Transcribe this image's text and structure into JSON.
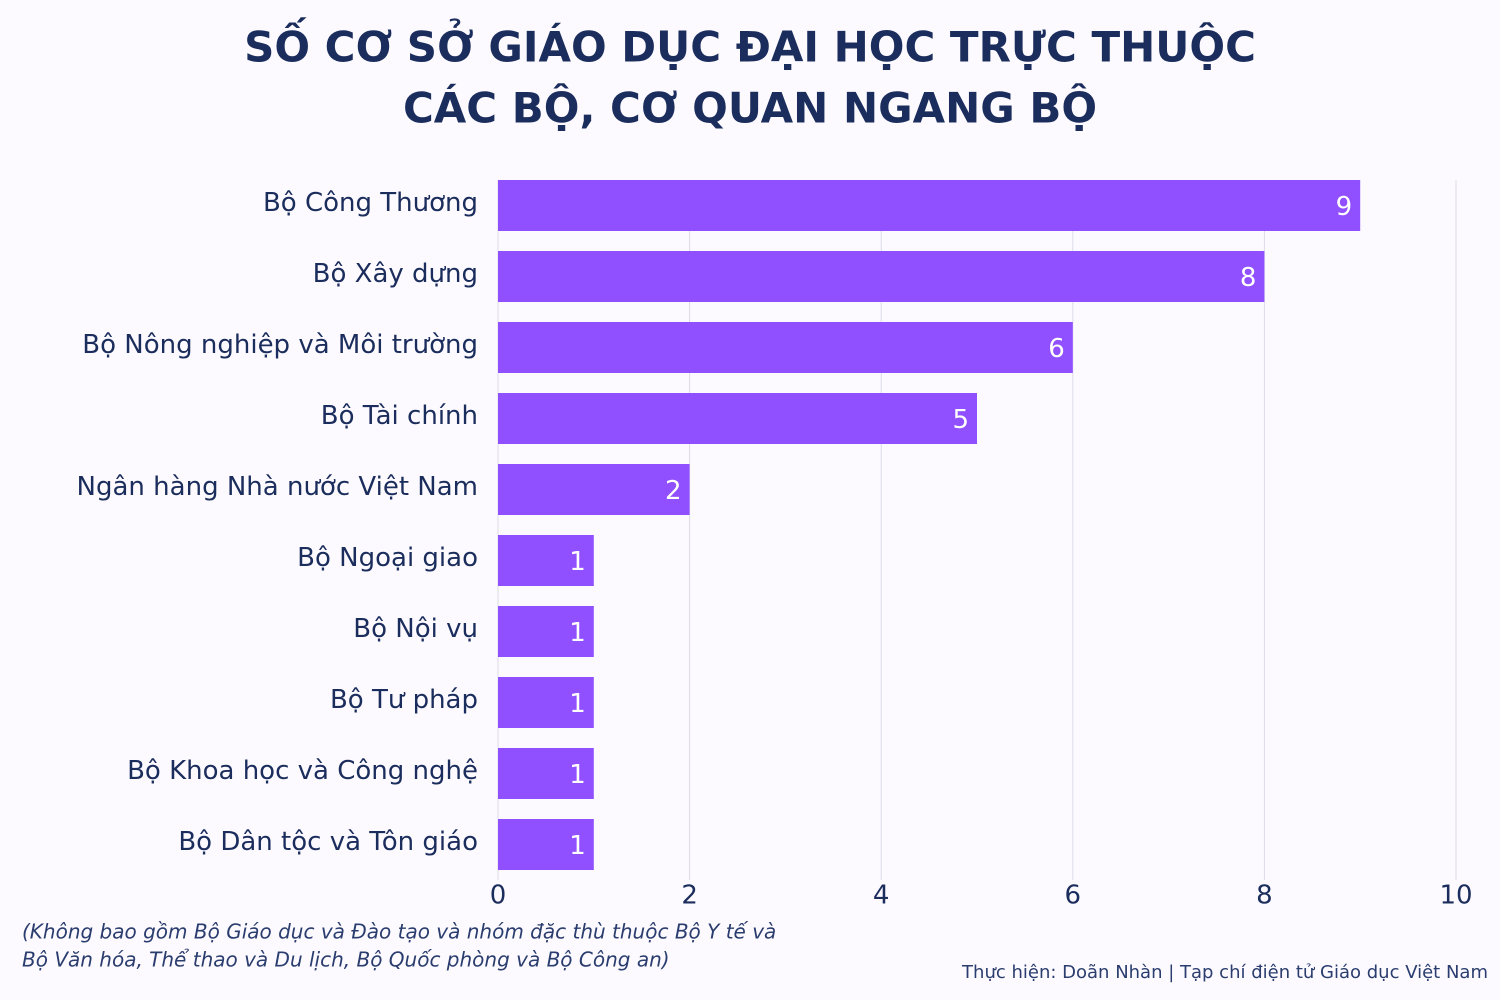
{
  "chart_data": {
    "type": "bar",
    "orientation": "horizontal",
    "title_lines": [
      "SỐ CƠ SỞ GIÁO DỤC ĐẠI HỌC TRỰC THUỘC",
      "CÁC BỘ, CƠ QUAN NGANG BỘ"
    ],
    "categories": [
      "Bộ Công Thương",
      "Bộ Xây dựng",
      "Bộ Nông nghiệp và Môi trường",
      "Bộ Tài chính",
      "Ngân hàng Nhà nước Việt Nam",
      "Bộ Ngoại giao",
      "Bộ Nội vụ",
      "Bộ Tư pháp",
      "Bộ Khoa học và Công nghệ",
      "Bộ Dân tộc và Tôn giáo"
    ],
    "values": [
      9,
      8,
      6,
      5,
      2,
      1,
      1,
      1,
      1,
      1
    ],
    "color": "#9150ff",
    "xlim": [
      0,
      10
    ],
    "xticks": [
      0,
      2,
      4,
      6,
      8,
      10
    ],
    "grid": true,
    "note_lines": [
      "(Không bao gồm Bộ Giáo dục và Đào tạo và nhóm đặc thù thuộc Bộ Y tế và",
      "Bộ Văn hóa, Thể thao và Du lịch, Bộ Quốc phòng và Bộ Công an)"
    ],
    "source": "Thực hiện: Doãn Nhàn | Tạp chí điện tử Giáo dục Việt Nam"
  }
}
